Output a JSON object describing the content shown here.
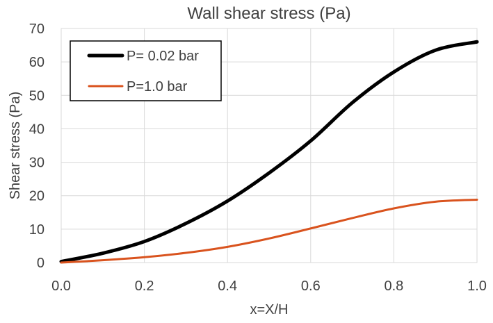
{
  "chart_data": {
    "type": "line",
    "title": "Wall shear stress (Pa)",
    "xlabel": "x=X/H",
    "ylabel": "Shear stress (Pa)",
    "xlim": [
      0.0,
      1.0
    ],
    "ylim": [
      0,
      70
    ],
    "xticks": [
      0.0,
      0.2,
      0.4,
      0.6,
      0.8,
      1.0
    ],
    "xtick_labels": [
      "0.0",
      "0.2",
      "0.4",
      "0.6",
      "0.8",
      "1.0"
    ],
    "yticks": [
      0,
      10,
      20,
      30,
      40,
      50,
      60,
      70
    ],
    "ytick_labels": [
      "0",
      "10",
      "20",
      "30",
      "40",
      "50",
      "60",
      "70"
    ],
    "grid": true,
    "legend_position": "top-left",
    "series": [
      {
        "name": "P= 0.02 bar",
        "color": "#000000",
        "x": [
          0.0,
          0.1,
          0.2,
          0.3,
          0.4,
          0.5,
          0.6,
          0.7,
          0.8,
          0.9,
          1.0
        ],
        "y": [
          0.3,
          2.8,
          6.3,
          11.7,
          18.4,
          26.8,
          36.4,
          47.8,
          57.0,
          63.5,
          66.0
        ]
      },
      {
        "name": "P=1.0 bar",
        "color": "#D9531E",
        "x": [
          0.0,
          0.1,
          0.2,
          0.3,
          0.4,
          0.5,
          0.6,
          0.7,
          0.8,
          0.9,
          1.0
        ],
        "y": [
          0.0,
          0.7,
          1.6,
          2.9,
          4.7,
          7.2,
          10.2,
          13.3,
          16.2,
          18.2,
          18.8
        ]
      }
    ]
  }
}
